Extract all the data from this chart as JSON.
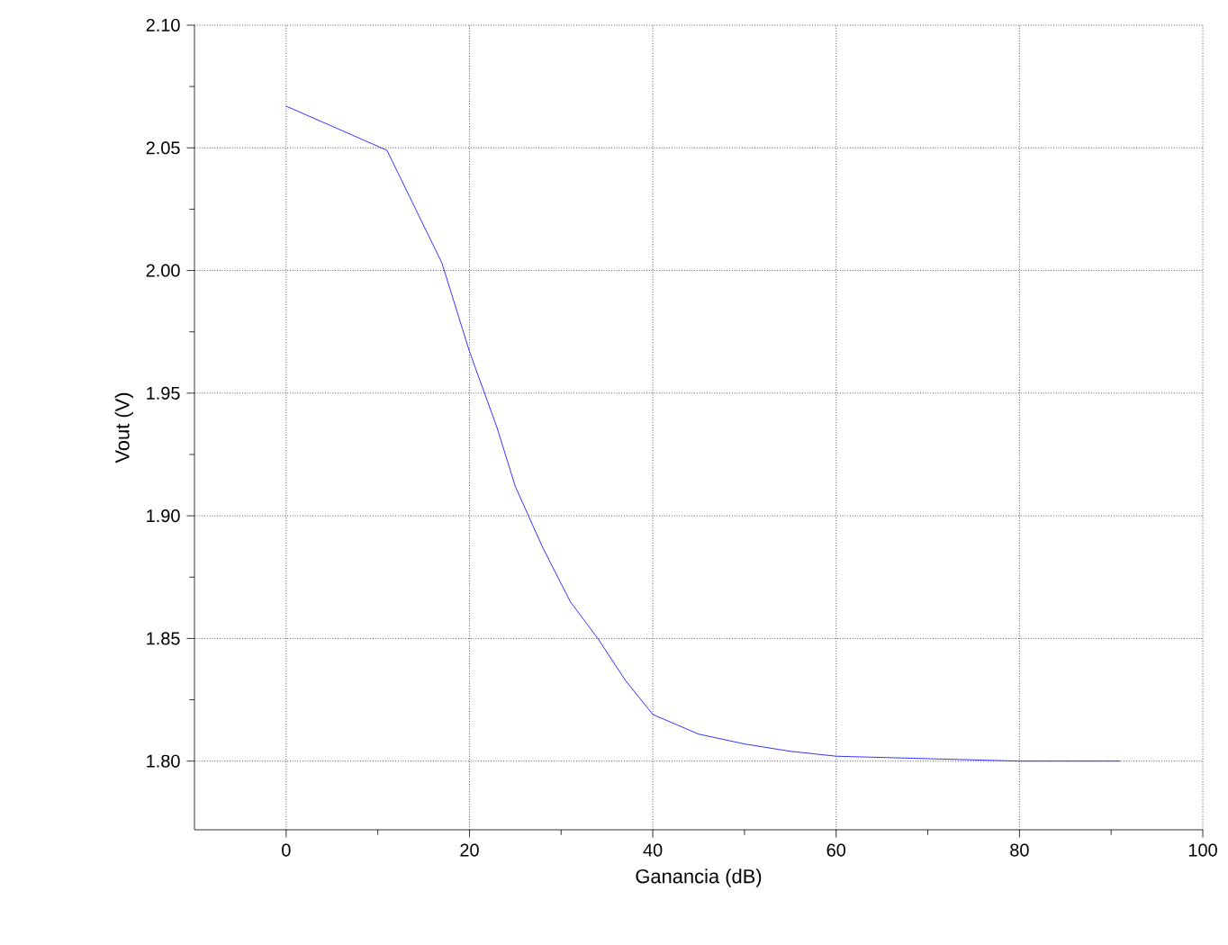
{
  "chart_data": {
    "type": "line",
    "xlabel": "Ganancia (dB)",
    "ylabel": "Vout (V)",
    "xlim": [
      -10,
      100
    ],
    "ylim": [
      1.772,
      2.1
    ],
    "xticks": [
      0,
      20,
      40,
      60,
      80,
      100
    ],
    "yticks": [
      {
        "value": 1.8,
        "label": "1.80"
      },
      {
        "value": 1.85,
        "label": "1.85"
      },
      {
        "value": 1.9,
        "label": "1.90"
      },
      {
        "value": 1.95,
        "label": "1.95"
      },
      {
        "value": 2.0,
        "label": "2.00"
      },
      {
        "value": 2.05,
        "label": "2.05"
      },
      {
        "value": 2.1,
        "label": "2.10"
      }
    ],
    "grid": true,
    "marker": "none",
    "line_style": "solid",
    "series": [
      {
        "color": "#0000ff",
        "x": [
          0,
          11,
          17,
          20,
          23,
          25,
          28,
          31,
          34,
          37,
          40,
          45,
          50,
          55,
          60,
          70,
          80,
          91
        ],
        "values": [
          2.067,
          2.049,
          2.003,
          1.967,
          1.936,
          1.912,
          1.887,
          1.865,
          1.85,
          1.833,
          1.819,
          1.811,
          1.807,
          1.804,
          1.802,
          1.801,
          1.8,
          1.8
        ]
      }
    ]
  }
}
